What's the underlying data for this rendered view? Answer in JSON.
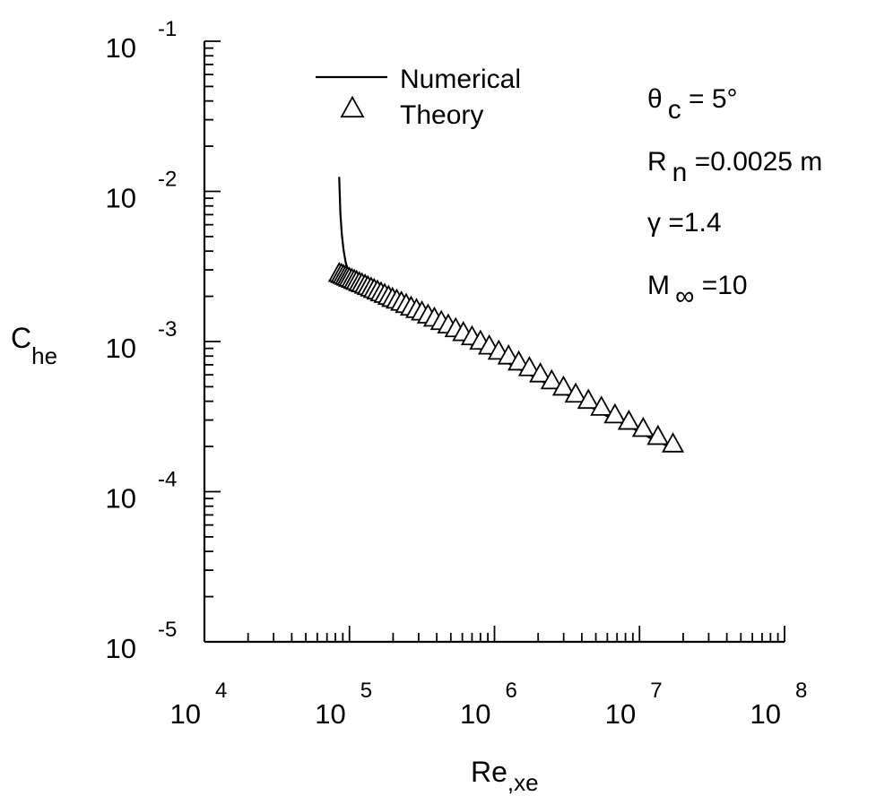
{
  "chart_data": {
    "type": "line",
    "xscale": "log",
    "yscale": "log",
    "xlim": [
      10000,
      100000000
    ],
    "ylim": [
      1e-05,
      0.1
    ],
    "grid": false,
    "legend_position": "top-left",
    "xlabel": {
      "main": "Re",
      "sub": ",xe"
    },
    "ylabel": {
      "main": "C",
      "sub": "he"
    },
    "xticks": [
      {
        "base": "10",
        "exp": "4",
        "value": 10000
      },
      {
        "base": "10",
        "exp": "5",
        "value": 100000
      },
      {
        "base": "10",
        "exp": "6",
        "value": 1000000
      },
      {
        "base": "10",
        "exp": "7",
        "value": 10000000
      },
      {
        "base": "10",
        "exp": "8",
        "value": 100000000
      }
    ],
    "yticks": [
      {
        "base": "10",
        "exp": "-1",
        "value": 0.1
      },
      {
        "base": "10",
        "exp": "-2",
        "value": 0.01
      },
      {
        "base": "10",
        "exp": "-3",
        "value": 0.001
      },
      {
        "base": "10",
        "exp": "-4",
        "value": 0.0001
      },
      {
        "base": "10",
        "exp": "-5",
        "value": 1e-05
      }
    ],
    "series": [
      {
        "name": "Numerical",
        "style": "line",
        "color": "#000000",
        "x": [
          85000,
          86500,
          88500,
          91000,
          94000,
          98000,
          103000,
          112000,
          130000,
          160000,
          200000,
          250000,
          320000,
          400000,
          500000,
          630000,
          800000,
          1000000,
          1300000,
          1600000,
          2000000,
          2500000,
          3200000,
          4000000,
          5000000,
          6300000,
          8000000,
          10000000,
          12600000,
          16000000,
          18500000
        ],
        "y": [
          0.0125,
          0.0072,
          0.0052,
          0.0041,
          0.0034,
          0.00295,
          0.00265,
          0.00242,
          0.00222,
          0.00199,
          0.00178,
          0.00159,
          0.00141,
          0.00126,
          0.00113,
          0.001,
          0.00089,
          0.0008,
          0.0007,
          0.00063,
          0.00056,
          0.0005,
          0.00044,
          0.0004,
          0.00035,
          0.00031,
          0.00028,
          0.00025,
          0.00022,
          0.0002,
          0.000185
        ]
      },
      {
        "name": "Theory",
        "style": "marker",
        "marker": "triangle",
        "color": "#000000",
        "x": [
          85000,
          88000,
          91000,
          94000,
          97000,
          100000,
          104000,
          108000,
          112000,
          117000,
          122000,
          128000,
          134000,
          141000,
          148000,
          156000,
          165000,
          175000,
          186000,
          198000,
          212000,
          228000,
          246000,
          266000,
          290000,
          316000,
          348000,
          385000,
          430000,
          480000,
          540000,
          610000,
          700000,
          800000,
          920000,
          1070000,
          1250000,
          1470000,
          1740000,
          2070000,
          2480000,
          2990000,
          3630000,
          4440000,
          5460000,
          6770000,
          8440000,
          10600000,
          13400000,
          17000000
        ],
        "y": [
          0.0028,
          0.00276,
          0.00272,
          0.00268,
          0.00264,
          0.0026,
          0.00256,
          0.00252,
          0.00248,
          0.00243,
          0.00239,
          0.00234,
          0.00229,
          0.00224,
          0.00219,
          0.00214,
          0.00208,
          0.00203,
          0.00197,
          0.00191,
          0.00186,
          0.0018,
          0.00174,
          0.00167,
          0.00161,
          0.00155,
          0.00148,
          0.00141,
          0.00134,
          0.00127,
          0.0012,
          0.00113,
          0.00106,
          0.00099,
          0.00092,
          0.00085,
          0.00079,
          0.00072,
          0.00066,
          0.0006,
          0.00054,
          0.00049,
          0.00044,
          0.0004,
          0.00036,
          0.00032,
          0.00029,
          0.00026,
          0.00023,
          0.000205
        ]
      }
    ],
    "legend": [
      {
        "label": "Numerical",
        "symbol": "line"
      },
      {
        "label": "Theory",
        "symbol": "triangle"
      }
    ],
    "parameters": [
      {
        "sym": "θ",
        "sub": "c",
        "rest": " = 5°"
      },
      {
        "sym": "R",
        "sub": "n",
        "rest": " =0.0025 m"
      },
      {
        "sym": "γ",
        "sub": "",
        "rest": " =1.4"
      },
      {
        "sym": "M",
        "sub": "∞",
        "rest": " =10"
      }
    ]
  }
}
